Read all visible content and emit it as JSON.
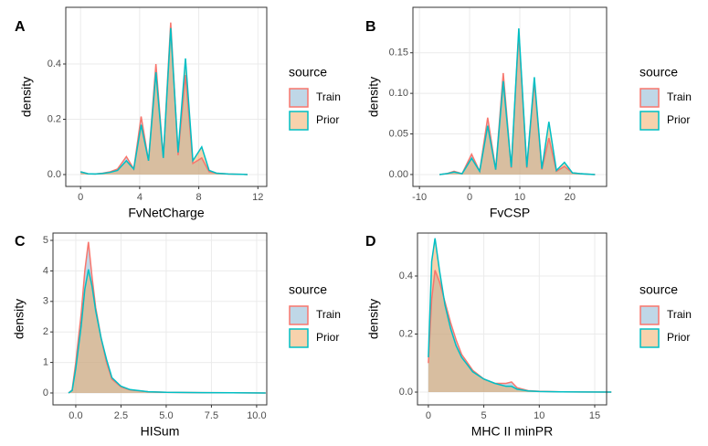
{
  "chart_data": [
    {
      "type": "area",
      "label": "A",
      "xlabel": "FvNetCharge",
      "ylabel": "density",
      "legend_title": "source",
      "xlim": [
        -1,
        12.6
      ],
      "ylim": [
        -0.043,
        0.605
      ],
      "grid": true,
      "xticks": [
        0,
        4,
        8,
        12
      ],
      "yticks": [
        {
          "value": 0,
          "label": "0.0"
        },
        {
          "value": 0.2,
          "label": "0.2"
        },
        {
          "value": 0.4,
          "label": "0.4"
        }
      ],
      "x": [
        0,
        0.5,
        1,
        1.5,
        2,
        2.5,
        3.1,
        3.6,
        4.1,
        4.6,
        5.1,
        5.6,
        6.1,
        6.6,
        7.1,
        7.6,
        8.2,
        8.7,
        9.2,
        10,
        11,
        11.3
      ],
      "series": [
        {
          "name": "Train",
          "color": "#F8766D",
          "fill": "#7fb0d0",
          "values": [
            0.01,
            0.003,
            0.002,
            0.005,
            0.01,
            0.02,
            0.065,
            0.02,
            0.21,
            0.05,
            0.4,
            0.06,
            0.55,
            0.07,
            0.36,
            0.04,
            0.06,
            0.01,
            0.005,
            0.002,
            0.001,
            0
          ]
        },
        {
          "name": "Prior",
          "color": "#00BFC4",
          "fill": "#f2a65a",
          "values": [
            0.01,
            0.003,
            0.002,
            0.004,
            0.008,
            0.015,
            0.05,
            0.02,
            0.18,
            0.05,
            0.37,
            0.06,
            0.53,
            0.08,
            0.42,
            0.05,
            0.1,
            0.015,
            0.005,
            0.002,
            0.001,
            0
          ]
        }
      ]
    },
    {
      "type": "area",
      "label": "B",
      "xlabel": "FvCSP",
      "ylabel": "density",
      "legend_title": "source",
      "xlim": [
        -11.3,
        27.3
      ],
      "ylim": [
        -0.0147,
        0.206
      ],
      "grid": true,
      "xticks": [
        -10,
        0,
        10,
        20
      ],
      "yticks": [
        {
          "value": 0,
          "label": "0.00"
        },
        {
          "value": 0.05,
          "label": "0.05"
        },
        {
          "value": 0.1,
          "label": "0.10"
        },
        {
          "value": 0.15,
          "label": "0.15"
        }
      ],
      "x": [
        -6,
        -4.6,
        -3.1,
        -1.5,
        0.4,
        2,
        3.6,
        5.2,
        6.7,
        8.3,
        9.8,
        11.4,
        12.9,
        14.4,
        15.8,
        17.3,
        18.9,
        20.5,
        22,
        25
      ],
      "series": [
        {
          "name": "Train",
          "color": "#F8766D",
          "fill": "#7fb0d0",
          "values": [
            0,
            0.001,
            0.004,
            0.001,
            0.025,
            0.004,
            0.07,
            0.006,
            0.125,
            0.008,
            0.175,
            0.008,
            0.115,
            0.006,
            0.045,
            0.004,
            0.01,
            0.002,
            0.001,
            0
          ]
        },
        {
          "name": "Prior",
          "color": "#00BFC4",
          "fill": "#f2a65a",
          "values": [
            0,
            0.001,
            0.003,
            0.001,
            0.02,
            0.004,
            0.06,
            0.006,
            0.115,
            0.009,
            0.18,
            0.009,
            0.12,
            0.007,
            0.065,
            0.005,
            0.015,
            0.002,
            0.001,
            0
          ]
        }
      ]
    },
    {
      "type": "area",
      "label": "C",
      "xlabel": "HISum",
      "ylabel": "density",
      "legend_title": "source",
      "xlim": [
        -1.26,
        10.56
      ],
      "ylim": [
        -0.39,
        5.24
      ],
      "grid": true,
      "xticks": [
        {
          "value": 0,
          "label": "0.0"
        },
        2.5,
        {
          "value": 5,
          "label": "5.0"
        },
        7.5,
        {
          "value": 10,
          "label": "10.0"
        }
      ],
      "yticks": [
        0,
        1,
        2,
        3,
        4,
        5
      ],
      "x": [
        -0.4,
        -0.2,
        0,
        0.3,
        0.5,
        0.7,
        0.9,
        1.1,
        1.4,
        1.7,
        2,
        2.5,
        3,
        4,
        5,
        7,
        10.5
      ],
      "series": [
        {
          "name": "Train",
          "color": "#F8766D",
          "fill": "#7fb0d0",
          "values": [
            0,
            0.1,
            1.0,
            2.6,
            4.0,
            4.95,
            3.8,
            2.8,
            1.8,
            1.0,
            0.45,
            0.2,
            0.1,
            0.04,
            0.02,
            0.01,
            0
          ]
        },
        {
          "name": "Prior",
          "color": "#00BFC4",
          "fill": "#f2a65a",
          "values": [
            0,
            0.08,
            0.8,
            2.2,
            3.4,
            4.05,
            3.5,
            2.7,
            1.8,
            1.1,
            0.5,
            0.22,
            0.11,
            0.04,
            0.02,
            0.01,
            0
          ]
        }
      ]
    },
    {
      "type": "area",
      "label": "D",
      "xlabel": "MHC II minPR",
      "ylabel": "density",
      "legend_title": "source",
      "xlim": [
        -0.98,
        16.07
      ],
      "ylim": [
        -0.044,
        0.548
      ],
      "grid": true,
      "xticks": [
        0,
        5,
        10,
        15
      ],
      "yticks": [
        {
          "value": 0,
          "label": "0.0"
        },
        {
          "value": 0.2,
          "label": "0.2"
        },
        {
          "value": 0.4,
          "label": "0.4"
        }
      ],
      "x": [
        0,
        0.3,
        0.6,
        1,
        1.5,
        2,
        2.5,
        3,
        4,
        5,
        6,
        7,
        7.5,
        8,
        9,
        10,
        12,
        16.5
      ],
      "series": [
        {
          "name": "Train",
          "color": "#F8766D",
          "fill": "#7fb0d0",
          "values": [
            0.1,
            0.32,
            0.42,
            0.38,
            0.31,
            0.24,
            0.18,
            0.13,
            0.075,
            0.045,
            0.03,
            0.03,
            0.035,
            0.015,
            0.005,
            0.003,
            0.001,
            0
          ]
        },
        {
          "name": "Prior",
          "color": "#00BFC4",
          "fill": "#f2a65a",
          "values": [
            0.12,
            0.45,
            0.53,
            0.42,
            0.3,
            0.22,
            0.16,
            0.12,
            0.07,
            0.045,
            0.03,
            0.02,
            0.02,
            0.01,
            0.004,
            0.002,
            0.001,
            0
          ]
        }
      ]
    }
  ]
}
